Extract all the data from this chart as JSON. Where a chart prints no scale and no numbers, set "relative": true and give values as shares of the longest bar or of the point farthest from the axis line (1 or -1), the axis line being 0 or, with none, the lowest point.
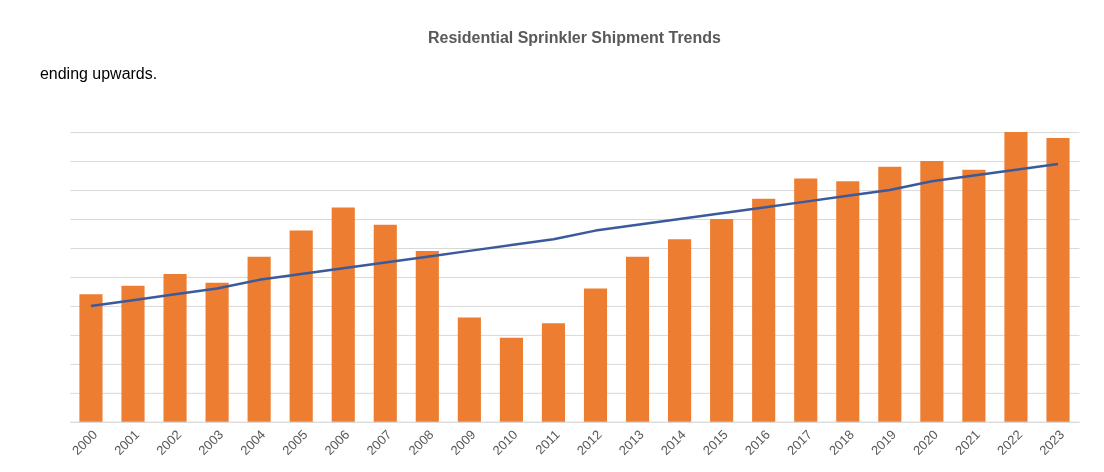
{
  "chart_data": {
    "type": "bar",
    "title": "Residential Sprinkler Shipment Trends",
    "relative": true,
    "grid": "y",
    "annotations": [
      "ending upwards."
    ],
    "categories": [
      "2000",
      "2001",
      "2002",
      "2003",
      "2004",
      "2005",
      "2006",
      "2007",
      "2008",
      "2009",
      "2010",
      "2011",
      "2012",
      "2013",
      "2014",
      "2015",
      "2016",
      "2017",
      "2018",
      "2019",
      "2020",
      "2021",
      "2022",
      "2023"
    ],
    "series": [
      {
        "color": "#ed7d31",
        "values": [
          0.44,
          0.47,
          0.51,
          0.48,
          0.57,
          0.66,
          0.74,
          0.68,
          0.59,
          0.36,
          0.29,
          0.34,
          0.46,
          0.57,
          0.63,
          0.7,
          0.77,
          0.84,
          0.83,
          0.88,
          0.9,
          0.87,
          1,
          0.98
        ]
      },
      {
        "type": "line",
        "color": "#3a5a9c",
        "values": [
          0.4,
          0.42,
          0.44,
          0.46,
          0.49,
          0.51,
          0.53,
          0.55,
          0.57,
          0.59,
          0.61,
          0.63,
          0.66,
          0.68,
          0.7,
          0.72,
          0.74,
          0.76,
          0.78,
          0.8,
          0.83,
          0.85,
          0.87,
          0.89
        ]
      }
    ]
  }
}
